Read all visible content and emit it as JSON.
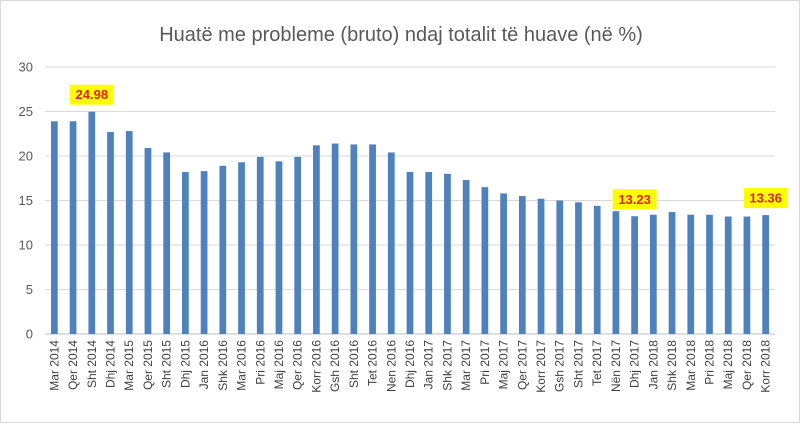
{
  "chart_data": {
    "type": "bar",
    "title": "Huatë me probleme (bruto) ndaj totalit të huave (në %)",
    "xlabel": "",
    "ylabel": "",
    "ylim": [
      0,
      30
    ],
    "yticks": [
      0,
      5,
      10,
      15,
      20,
      25,
      30
    ],
    "grid": true,
    "categories": [
      "Mar 2014",
      "Qer 2014",
      "Sht 2014",
      "Dhj 2014",
      "Mar 2015",
      "Qer 2015",
      "Sht 2015",
      "Dhj 2015",
      "Jan 2016",
      "Shk 2016",
      "Mar 2016",
      "Pri 2016",
      "Maj 2016",
      "Qer 2016",
      "Korr 2016",
      "Gsh 2016",
      "Sht 2016",
      "Tet 2016",
      "Nen 2016",
      "Dhj 2016",
      "Jan 2017",
      "Shk 2017",
      "Mar 2017",
      "Pri 2017",
      "Maj 2017",
      "Qer 2017",
      "Korr 2017",
      "Gsh 2017",
      "Sht 2017",
      "Tet 2017",
      "Nën 2017",
      "Dhj 2017",
      "Jan 2018",
      "Shk 2018",
      "Mar 2018",
      "Pri 2018",
      "Maj 2018",
      "Qer 2018",
      "Korr 2018"
    ],
    "values": [
      23.9,
      23.9,
      24.98,
      22.7,
      22.8,
      20.9,
      20.4,
      18.2,
      18.3,
      18.9,
      19.3,
      19.9,
      19.4,
      19.9,
      21.2,
      21.4,
      21.3,
      21.3,
      20.4,
      18.2,
      18.2,
      18.0,
      17.3,
      16.5,
      15.8,
      15.5,
      15.2,
      15.0,
      14.8,
      14.4,
      13.8,
      13.23,
      13.4,
      13.7,
      13.4,
      13.4,
      13.2,
      13.2,
      13.36
    ],
    "annotations": [
      {
        "index": 2,
        "label": "24.98"
      },
      {
        "index": 31,
        "label": "13.23"
      },
      {
        "index": 38,
        "label": "13.36"
      }
    ],
    "colors": {
      "bar": "#4f81bd",
      "callout_bg": "#ffff00",
      "callout_text": "#e02020"
    }
  }
}
